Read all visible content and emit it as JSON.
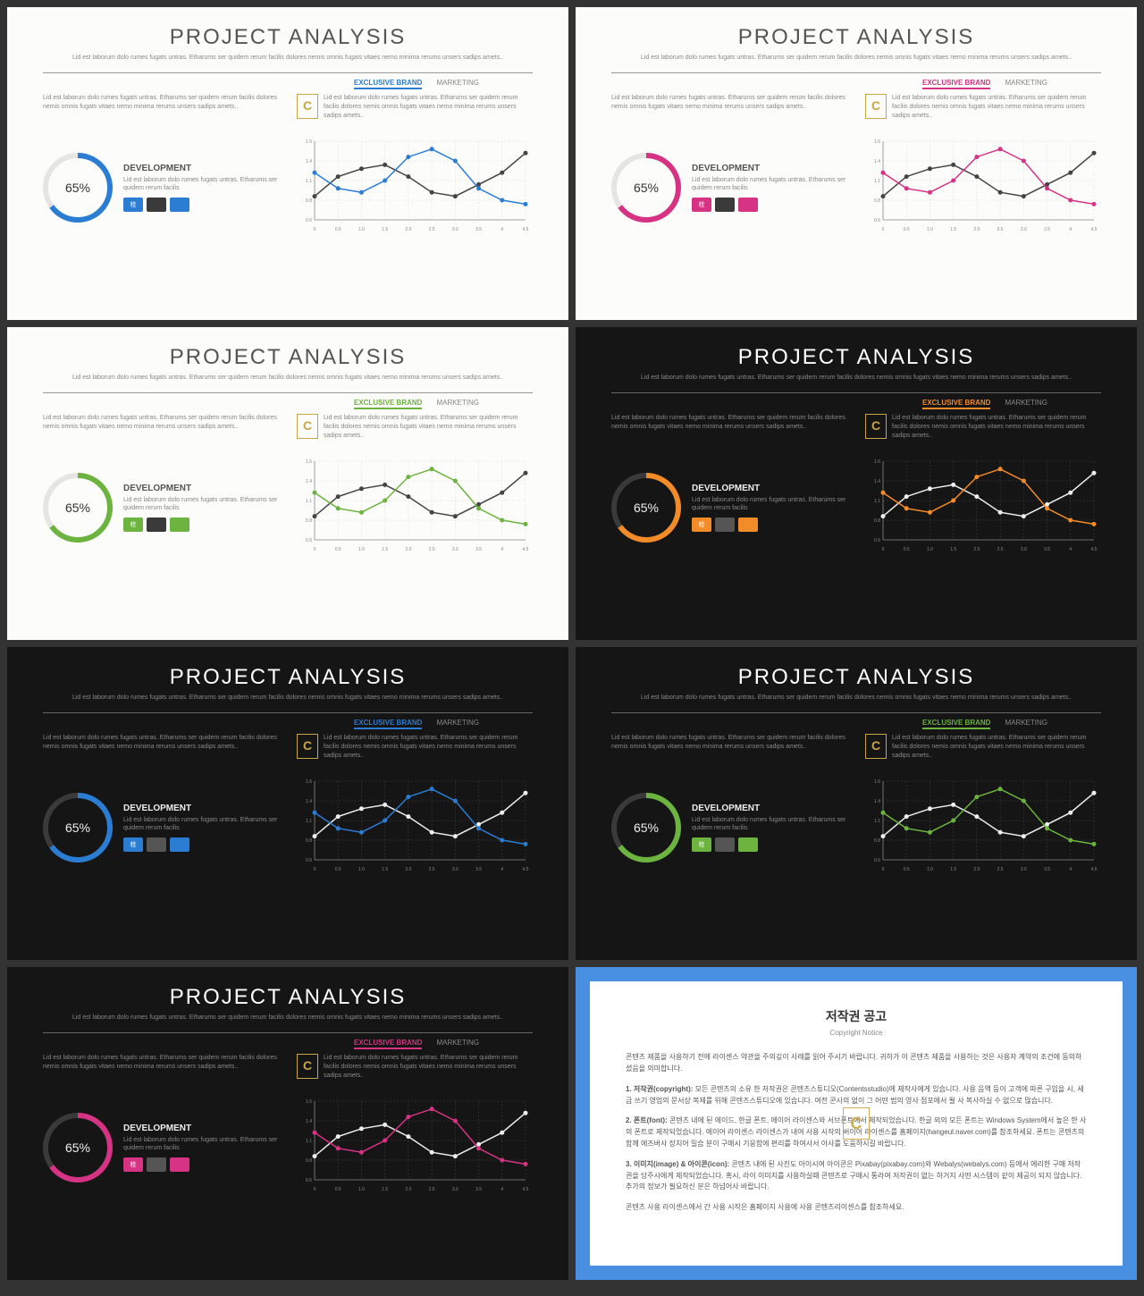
{
  "common": {
    "title": "PROJECT ANALYSIS",
    "subtitle": "Lid est laborum dolo rumes fugats untras. Etharums ser quidem rerum facilis dolores nemis omnis fugats vitaes nemo minima rerums unsers sadips amets..",
    "tab1": "EXCLUSIVE BRAND",
    "tab2": "MARKETING",
    "col_text": "Lid est laborum dolo rumes fugats untras. Etharums ser quidem rerum facilis dolores nemis omnis fugats vitaes nemo minima rerums unsers sadips amets..",
    "donut": {
      "percent": 65,
      "label": "65%",
      "circumference": 226,
      "dash": 147
    },
    "dev_title": "DEVELOPMENT",
    "dev_text": "Lid est laborum dolo rumes fugats untras. Etharums ser quidem rerum facilis",
    "swatch_label": "栓",
    "chart": {
      "x": [
        0,
        0.5,
        1.0,
        1.5,
        2.0,
        2.5,
        3.0,
        3.5,
        4.0,
        4.5
      ],
      "x_labels": [
        "0",
        "0.5",
        "1.0",
        "1.5",
        "2.0",
        "2.5",
        "3.0",
        "3.5",
        "4",
        "4.5"
      ],
      "series_accent": [
        1.2,
        1.0,
        0.95,
        1.1,
        1.4,
        1.5,
        1.35,
        1.0,
        0.85,
        0.8
      ],
      "series_neutral": [
        0.9,
        1.15,
        1.25,
        1.3,
        1.15,
        0.95,
        0.9,
        1.05,
        1.2,
        1.45
      ],
      "y_min": 0.6,
      "y_max": 1.6,
      "line_width": 1.5,
      "marker_r": 2.5
    }
  },
  "variants": [
    {
      "bg": "light",
      "accent": "#2b7cd3",
      "neutral": "#444",
      "track": "#e5e5e5",
      "grid": "#ddd",
      "axis_text": "#888"
    },
    {
      "bg": "light",
      "accent": "#d63384",
      "neutral": "#444",
      "track": "#e5e5e5",
      "grid": "#ddd",
      "axis_text": "#888"
    },
    {
      "bg": "light",
      "accent": "#6cb33f",
      "neutral": "#444",
      "track": "#e5e5e5",
      "grid": "#ddd",
      "axis_text": "#888"
    },
    {
      "bg": "dark",
      "accent": "#f28c28",
      "neutral": "#eee",
      "track": "#3a3a3a",
      "grid": "#444",
      "axis_text": "#888"
    },
    {
      "bg": "dark",
      "accent": "#2b7cd3",
      "neutral": "#eee",
      "track": "#3a3a3a",
      "grid": "#444",
      "axis_text": "#888"
    },
    {
      "bg": "dark",
      "accent": "#6cb33f",
      "neutral": "#eee",
      "track": "#3a3a3a",
      "grid": "#444",
      "axis_text": "#888"
    },
    {
      "bg": "dark",
      "accent": "#d63384",
      "neutral": "#eee",
      "track": "#3a3a3a",
      "grid": "#444",
      "axis_text": "#888"
    }
  ],
  "notice": {
    "border_color": "#4a90e2",
    "title": "저작권 공고",
    "subtitle": "Copyright Notice",
    "p1": "콘텐츠 제품을 사용하기 전에 라이센스 약관을 주의깊이 사례를 읽어 주시기 바랍니다. 귀하가 이 콘텐츠 제품을 사용하는 것은 사용자 계약의 조건에 동의하셨음을 의미합니다.",
    "p2_label": "1. 저작권(copyright):",
    "p2": "모든 콘텐츠의 소유 한 저작권은 콘텐츠스튜디오(Contentsstudio)에 제작사에게 있습니다. 사용 음액 등이 고객에 따른 구입을 시, 세금 쓰기 영업의 문서상 복제를 위해 콘텐츠스튜디오에 있습니다. 여전 콘사의 없이 그 어떤 범의 영사 점포에서 될 사 복사하실 수 없으로 많습니다.",
    "p3_label": "2. 폰트(font):",
    "p3": "콘텐츠 내에 된 에이드, 한글 폰트, 에이어 라이센스와 서브폰트에서 제작되었습니다. 한글 외의 모든 폰트는 Windows System에서 높은 한 사의 폰트로 제작되었습니다. 에이어 라이센스 라이센스가 내여 사용 시작의 버이어 라이센스를 홈페이지(hangeul.naver.com)를 참조하세요. 폰트는 콘텐츠의 함께 에즈버사 장치어 밀습 분이 구매시 기응함에 편리를 하여사서 아사를 도움하시길 바랍니다.",
    "p4_label": "3. 이미지(image) & 아이콘(icon):",
    "p4": "콘텐츠 내에 된 사진도 아이시여 아이콘은 Pixabay(pixabay.com)와 Webalys(webalys.com) 등에서 에리한 구매 저작권을 당주사에게 제작되었습니다. 혹시, 라이 이미지를 사용하실때 콘텐츠로 구매시 통라여 저작권이 없는 하거지 사떤 시스템이 같이 제공이 되지 않습니다. 추가의 정보가 필요하신 분은 하넘어사 바랍니다.",
    "p5": "콘텐츠 사용 라이센스에서 간 사용 시작은 홈페이지 사용에 사용 콘텐츠리이센스를 참조하세요."
  }
}
